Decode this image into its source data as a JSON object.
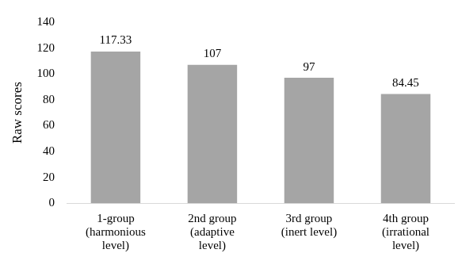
{
  "chart_data": {
    "type": "bar",
    "y_label": "Raw scores",
    "categories": [
      [
        "1-group",
        "(harmonious",
        "level)"
      ],
      [
        "2nd group",
        "(adaptive",
        "level)"
      ],
      [
        "3rd group",
        "(inert level)"
      ],
      [
        "4th group",
        "(irrational",
        "level)"
      ]
    ],
    "values": [
      117.33,
      107,
      97,
      84.45
    ],
    "color": "#a5a5a5",
    "ylim": [
      0,
      140
    ],
    "yticks": [
      0,
      20,
      40,
      60,
      80,
      100,
      120,
      140
    ],
    "grid": false,
    "data_labels": true
  }
}
